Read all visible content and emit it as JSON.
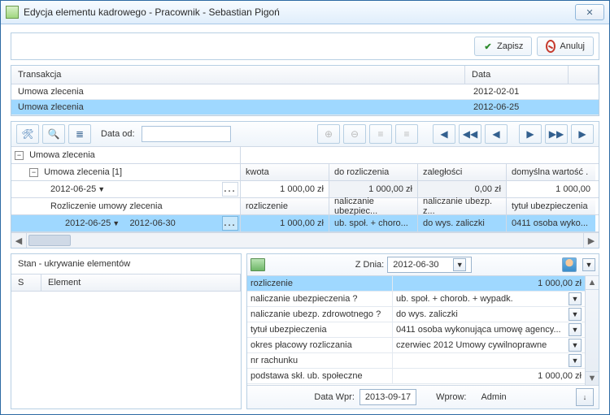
{
  "window": {
    "title": "Edycja elementu kadrowego - Pracownik - Sebastian Pigoń"
  },
  "actions": {
    "save": "Zapisz",
    "cancel": "Anuluj"
  },
  "grid1": {
    "headers": {
      "transaction": "Transakcja",
      "date": "Data"
    },
    "rows": [
      {
        "transaction": "Umowa zlecenia",
        "date": "2012-02-01",
        "selected": false
      },
      {
        "transaction": "Umowa zlecenia",
        "date": "2012-06-25",
        "selected": true
      }
    ]
  },
  "toolbar": {
    "date_from_label": "Data od:",
    "date_from_value": ""
  },
  "tree": {
    "root": "Umowa zlecenia",
    "child": "Umowa zlecenia [1]",
    "r1_headers": {
      "c1": "kwota",
      "c2": "do rozliczenia",
      "c3": "zaległości",
      "c4": "domyślna wartość ."
    },
    "r1_date": "2012-06-25",
    "r1_values": {
      "c1": "1 000,00 zł",
      "c2": "1 000,00 zł",
      "c3": "0,00 zł",
      "c4": "1 000,00"
    },
    "r2_label": "Rozliczenie umowy zlecenia",
    "r2_headers": {
      "c1": "rozliczenie",
      "c2": "naliczanie ubezpiec...",
      "c3": "naliczanie ubezp. z...",
      "c4": "tytuł ubezpieczenia"
    },
    "r3_date1": "2012-06-25",
    "r3_date2": "2012-06-30",
    "r3_values": {
      "c1": "1 000,00 zł",
      "c2": "ub. społ. + choro...",
      "c3": "do wys. zaliczki",
      "c4": "0411 osoba wyko..."
    }
  },
  "left": {
    "caption": "Stan - ukrywanie elementów",
    "col_s": "S",
    "col_el": "Element"
  },
  "right": {
    "zdnia_label": "Z Dnia:",
    "zdnia_value": "2012-06-30",
    "fields": [
      {
        "label": "rozliczenie",
        "value": "1 000,00 zł",
        "align": "r",
        "dd": false,
        "hl": true
      },
      {
        "label": "naliczanie ubezpieczenia ?",
        "value": "ub. społ. + chorob. + wypadk.",
        "align": "l",
        "dd": true
      },
      {
        "label": "naliczanie ubezp. zdrowotnego ?",
        "value": "do wys. zaliczki",
        "align": "l",
        "dd": true
      },
      {
        "label": "tytuł ubezpieczenia",
        "value": "0411 osoba wykonująca umowę agency...",
        "align": "l",
        "dd": true
      },
      {
        "label": "okres płacowy rozliczania",
        "value": "czerwiec 2012 Umowy cywilnoprawne",
        "align": "l",
        "dd": true
      },
      {
        "label": "nr rachunku",
        "value": "",
        "align": "l",
        "dd": true
      },
      {
        "label": "podstawa skł. ub. społeczne",
        "value": "1 000,00 zł",
        "align": "r",
        "dd": false
      }
    ],
    "footer": {
      "data_wpr_label": "Data Wpr:",
      "data_wpr_value": "2013-09-17",
      "wprow_label": "Wprow:",
      "wprow_value": "Admin"
    }
  },
  "glyphs": {
    "close": "✕",
    "check": "✔",
    "plus": "⊕",
    "minus": "⊖",
    "first": "◀◀",
    "prev": "◀",
    "next": "▶",
    "last": "▶▶",
    "left1": "◀",
    "right1": "▶",
    "down": "▼",
    "up": "▲",
    "tools": "✖",
    "search": "🔍",
    "lines": "≣",
    "lines2": "≡",
    "downarrow": "↓",
    "tri": "▼"
  }
}
